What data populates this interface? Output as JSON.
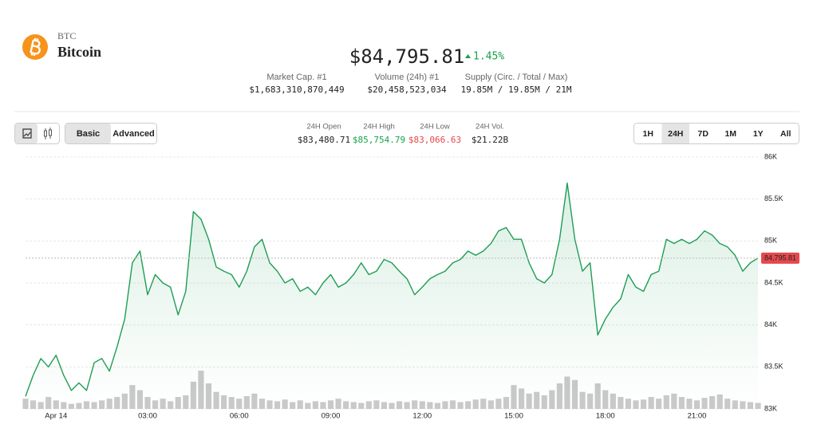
{
  "header": {
    "symbol": "BTC",
    "name": "Bitcoin",
    "price": "$84,795.81",
    "change": "1.45%",
    "change_color": "#16a34a",
    "stats": [
      {
        "label": "Market Cap. #1",
        "value": "$1,683,310,870,449"
      },
      {
        "label": "Volume (24h) #1",
        "value": "$20,458,523,034"
      },
      {
        "label": "Supply (Circ. / Total / Max)",
        "value": "19.85M / 19.85M / 21M"
      }
    ]
  },
  "toolbar": {
    "modes": [
      "Basic",
      "Advanced"
    ],
    "stats": [
      {
        "label": "24H Open",
        "value": "$83,480.71",
        "color": "#222222"
      },
      {
        "label": "24H High",
        "value": "$85,754.79",
        "color": "#16a34a"
      },
      {
        "label": "24H Low",
        "value": "$83,066.63",
        "color": "#e5484d"
      },
      {
        "label": "24H Vol.",
        "value": "$21.22B",
        "color": "#222222"
      }
    ],
    "ranges": [
      "1H",
      "24H",
      "7D",
      "1M",
      "1Y",
      "All"
    ]
  },
  "chart_data": {
    "type": "line",
    "color": "#1f9d55",
    "volume_color": "#c9c9c9",
    "last_color": "#e5484d",
    "grid": true,
    "x": [
      -1,
      -0.75,
      -0.5,
      -0.25,
      0,
      0.25,
      0.5,
      0.75,
      1,
      1.25,
      1.5,
      1.75,
      2,
      2.25,
      2.5,
      2.75,
      3,
      3.25,
      3.5,
      3.75,
      4,
      4.25,
      4.5,
      4.75,
      5,
      5.25,
      5.5,
      5.75,
      6,
      6.25,
      6.5,
      6.75,
      7,
      7.25,
      7.5,
      7.75,
      8,
      8.25,
      8.5,
      8.75,
      9,
      9.25,
      9.5,
      9.75,
      10,
      10.25,
      10.5,
      10.75,
      11,
      11.25,
      11.5,
      11.75,
      12,
      12.25,
      12.5,
      12.75,
      13,
      13.25,
      13.5,
      13.75,
      14,
      14.25,
      14.5,
      14.75,
      15,
      15.25,
      15.5,
      15.75,
      16,
      16.25,
      16.5,
      16.75,
      17,
      17.25,
      17.5,
      17.75,
      18,
      18.25,
      18.5,
      18.75,
      19,
      19.25,
      19.5,
      19.75,
      20,
      20.25,
      20.5,
      20.75,
      21,
      21.25,
      21.5,
      21.75,
      22,
      22.25,
      22.5,
      22.75,
      23
    ],
    "values": [
      83150,
      83400,
      83600,
      83500,
      83640,
      83400,
      83220,
      83310,
      83220,
      83550,
      83600,
      83450,
      83740,
      84070,
      84740,
      84880,
      84360,
      84600,
      84500,
      84450,
      84120,
      84400,
      85350,
      85260,
      85020,
      84690,
      84640,
      84600,
      84450,
      84640,
      84930,
      85020,
      84740,
      84640,
      84500,
      84550,
      84400,
      84450,
      84360,
      84500,
      84600,
      84450,
      84500,
      84600,
      84740,
      84600,
      84640,
      84780,
      84740,
      84640,
      84550,
      84360,
      84450,
      84550,
      84600,
      84640,
      84740,
      84780,
      84880,
      84830,
      84880,
      84970,
      85120,
      85160,
      85020,
      85020,
      84740,
      84550,
      84500,
      84600,
      85020,
      85690,
      85020,
      84640,
      84740,
      83880,
      84070,
      84210,
      84310,
      84600,
      84450,
      84400,
      84600,
      84640,
      85020,
      84970,
      85020,
      84970,
      85020,
      85120,
      85070,
      84970,
      84930,
      84830,
      84640,
      84740,
      84795.81
    ],
    "volume": [
      12,
      10,
      8,
      14,
      10,
      8,
      6,
      7,
      9,
      8,
      10,
      12,
      14,
      18,
      28,
      22,
      14,
      10,
      12,
      9,
      14,
      16,
      32,
      45,
      30,
      20,
      16,
      14,
      12,
      15,
      18,
      12,
      10,
      9,
      11,
      8,
      10,
      7,
      9,
      8,
      10,
      12,
      9,
      8,
      7,
      9,
      10,
      8,
      7,
      9,
      8,
      10,
      9,
      8,
      7,
      9,
      10,
      8,
      9,
      11,
      12,
      10,
      12,
      14,
      28,
      24,
      18,
      20,
      16,
      22,
      30,
      38,
      34,
      20,
      18,
      30,
      22,
      18,
      14,
      12,
      10,
      11,
      14,
      12,
      16,
      18,
      14,
      12,
      10,
      13,
      15,
      17,
      12,
      10,
      9,
      8,
      7
    ],
    "last_label": "84,795.81",
    "xlim": [
      -1,
      23
    ],
    "xticks": [
      {
        "value": 0,
        "label": "Apr 14"
      },
      {
        "value": 3,
        "label": "03:00"
      },
      {
        "value": 6,
        "label": "06:00"
      },
      {
        "value": 9,
        "label": "09:00"
      },
      {
        "value": 12,
        "label": "12:00"
      },
      {
        "value": 15,
        "label": "15:00"
      },
      {
        "value": 18,
        "label": "18:00"
      },
      {
        "value": 21,
        "label": "21:00"
      }
    ],
    "ylim": [
      83000,
      86000
    ],
    "yticks": [
      {
        "value": 83000,
        "label": "83K"
      },
      {
        "value": 83500,
        "label": "83.5K"
      },
      {
        "value": 84000,
        "label": "84K"
      },
      {
        "value": 84500,
        "label": "84.5K"
      },
      {
        "value": 85000,
        "label": "85K"
      },
      {
        "value": 85500,
        "label": "85.5K"
      },
      {
        "value": 86000,
        "label": "86K"
      }
    ]
  }
}
